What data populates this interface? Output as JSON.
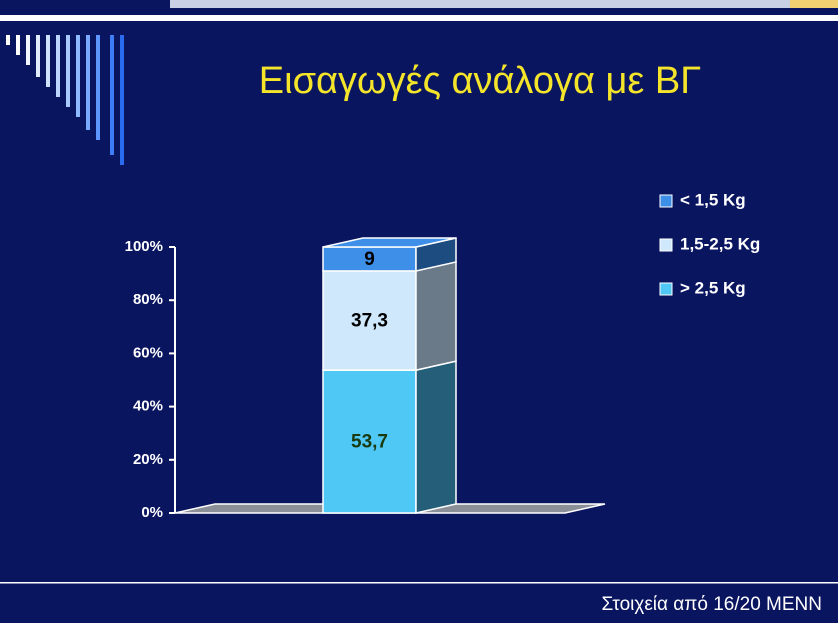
{
  "chart_data": {
    "type": "bar3d-stacked",
    "title": "Εισαγωγές ανάλογα με ΒΓ",
    "source": "Στοιχεία από 16/20 ΜΕΝΝ",
    "categories": [
      null
    ],
    "series": [
      {
        "name": "> 2,5 Kg",
        "color": "#4fc8f5",
        "side_color": "#245e78",
        "label_color": "#1a3a10",
        "values": [
          53.7
        ],
        "value_labels": [
          "53,7"
        ]
      },
      {
        "name": "1,5-2,5 Kg",
        "color": "#cfe8fb",
        "side_color": "#6a7a88",
        "label_color": "#000000",
        "values": [
          37.3
        ],
        "value_labels": [
          "37,3"
        ]
      },
      {
        "name": "< 1,5 Kg",
        "color": "#3e8fe8",
        "side_color": "#1d4d80",
        "label_color": "#000000",
        "values": [
          9
        ],
        "value_labels": [
          "9"
        ]
      }
    ],
    "ylim": [
      0,
      100
    ],
    "yticks": [
      {
        "value": 0,
        "label": "0%"
      },
      {
        "value": 20,
        "label": "20%"
      },
      {
        "value": 40,
        "label": "40%"
      },
      {
        "value": 60,
        "label": "60%"
      },
      {
        "value": 80,
        "label": "80%"
      },
      {
        "value": 100,
        "label": "100%"
      }
    ],
    "legend": "right"
  }
}
